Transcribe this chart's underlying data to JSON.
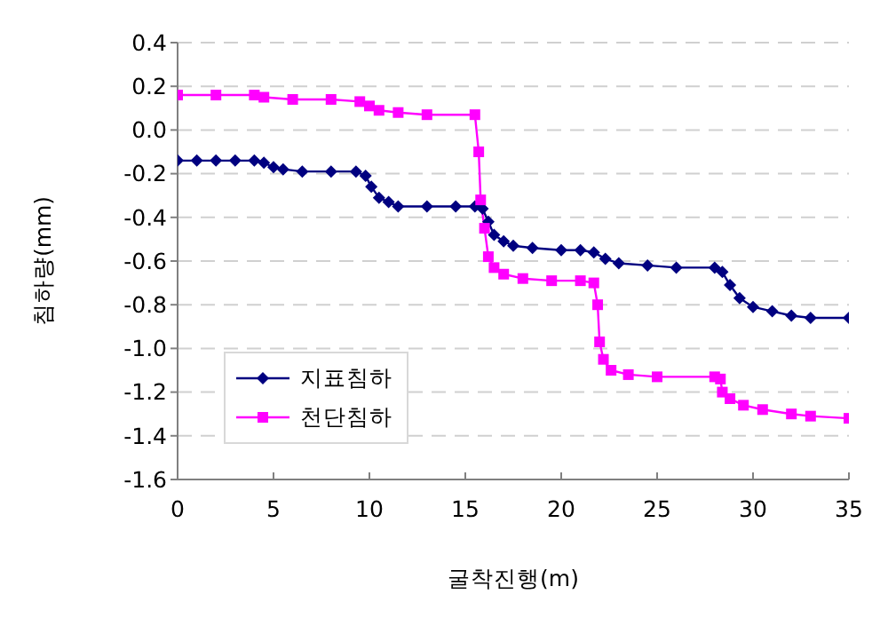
{
  "chart_data": {
    "type": "line",
    "xlabel": "굴착진행(m)",
    "ylabel": "침하량(mm)",
    "xlim": [
      0,
      35
    ],
    "xticks": [
      0,
      5,
      10,
      15,
      20,
      25,
      30,
      35
    ],
    "ylim": [
      -1.6,
      0.4
    ],
    "yticks": [
      0.4,
      0.2,
      {
        "value": 0,
        "label": "0.0"
      },
      -0.2,
      -0.4,
      -0.6,
      -0.8,
      {
        "value": -1,
        "label": "-1.0"
      },
      -1.2,
      -1.4,
      -1.6
    ],
    "grid": "y",
    "legend": "bottom left",
    "line_style": "solid",
    "series": [
      {
        "name": "지표침하",
        "color": "#000080",
        "marker": "diamond",
        "x": [
          0,
          1,
          2,
          3,
          4,
          4.5,
          5,
          5.5,
          6.5,
          8,
          9.3,
          9.8,
          10.1,
          10.5,
          11,
          11.5,
          13,
          14.5,
          15.5,
          15.9,
          16.2,
          16.5,
          17,
          17.5,
          18.5,
          20,
          21,
          21.7,
          22.3,
          23,
          24.5,
          26,
          28,
          28.4,
          28.8,
          29.3,
          30,
          31,
          32,
          33,
          35
        ],
        "values": [
          -0.14,
          -0.14,
          -0.14,
          -0.14,
          -0.14,
          -0.15,
          -0.17,
          -0.18,
          -0.19,
          -0.19,
          -0.19,
          -0.21,
          -0.26,
          -0.31,
          -0.33,
          -0.35,
          -0.35,
          -0.35,
          -0.35,
          -0.36,
          -0.42,
          -0.48,
          -0.51,
          -0.53,
          -0.54,
          -0.55,
          -0.55,
          -0.56,
          -0.59,
          -0.61,
          -0.62,
          -0.63,
          -0.63,
          -0.65,
          -0.71,
          -0.77,
          -0.81,
          -0.83,
          -0.85,
          -0.86,
          -0.86
        ]
      },
      {
        "name": "천단침하",
        "color": "#ff00ff",
        "marker": "square",
        "x": [
          0,
          2,
          4,
          4.5,
          6,
          8,
          9.5,
          10,
          10.5,
          11.5,
          13,
          15.5,
          15.7,
          15.8,
          16,
          16.2,
          16.5,
          17,
          18,
          19.5,
          21,
          21.7,
          21.9,
          22,
          22.2,
          22.6,
          23.5,
          25,
          28,
          28.3,
          28.4,
          28.8,
          29.5,
          30.5,
          32,
          33,
          35
        ],
        "values": [
          0.16,
          0.16,
          0.16,
          0.15,
          0.14,
          0.14,
          0.13,
          0.11,
          0.09,
          0.08,
          0.07,
          0.07,
          -0.1,
          -0.32,
          -0.45,
          -0.58,
          -0.63,
          -0.66,
          -0.68,
          -0.69,
          -0.69,
          -0.7,
          -0.8,
          -0.97,
          -1.05,
          -1.1,
          -1.12,
          -1.13,
          -1.13,
          -1.14,
          -1.2,
          -1.23,
          -1.26,
          -1.28,
          -1.3,
          -1.31,
          -1.32
        ]
      }
    ]
  }
}
